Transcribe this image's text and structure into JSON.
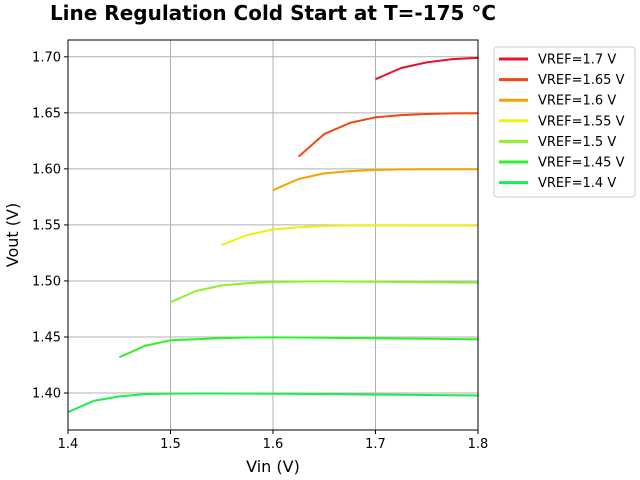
{
  "chart_data": {
    "type": "line",
    "title": "Line Regulation Cold Start at T=-175 °C",
    "xlabel": "Vin (V)",
    "ylabel": "Vout (V)",
    "xlim": [
      1.4,
      1.8
    ],
    "ylim": [
      1.367,
      1.715
    ],
    "xticks": [
      "1.4",
      "1.5",
      "1.6",
      "1.7",
      "1.8"
    ],
    "yticks": [
      "1.40",
      "1.45",
      "1.50",
      "1.55",
      "1.60",
      "1.65",
      "1.70"
    ],
    "grid": true,
    "legend_position": "outside-top-right",
    "series": [
      {
        "name": "VREF=1.7 V",
        "color": "#e8102a",
        "x": [
          1.7,
          1.725,
          1.75,
          1.775,
          1.8
        ],
        "y": [
          1.68,
          1.69,
          1.695,
          1.698,
          1.699
        ]
      },
      {
        "name": "VREF=1.65 V",
        "color": "#f04a10",
        "x": [
          1.625,
          1.65,
          1.675,
          1.7,
          1.725,
          1.75,
          1.775,
          1.8
        ],
        "y": [
          1.611,
          1.631,
          1.641,
          1.646,
          1.648,
          1.649,
          1.6495,
          1.6497
        ]
      },
      {
        "name": "VREF=1.6 V",
        "color": "#f5a300",
        "x": [
          1.6,
          1.625,
          1.65,
          1.675,
          1.7,
          1.725,
          1.75,
          1.775,
          1.8
        ],
        "y": [
          1.581,
          1.591,
          1.596,
          1.598,
          1.599,
          1.5995,
          1.5997,
          1.5997,
          1.5996
        ]
      },
      {
        "name": "VREF=1.55 V",
        "color": "#f0f010",
        "x": [
          1.55,
          1.575,
          1.6,
          1.625,
          1.65,
          1.675,
          1.7,
          1.725,
          1.75,
          1.775,
          1.8
        ],
        "y": [
          1.532,
          1.541,
          1.546,
          1.548,
          1.549,
          1.5495,
          1.5496,
          1.5496,
          1.5495,
          1.5495,
          1.5494
        ]
      },
      {
        "name": "VREF=1.5 V",
        "color": "#8cf02a",
        "x": [
          1.5,
          1.525,
          1.55,
          1.575,
          1.6,
          1.625,
          1.65,
          1.675,
          1.7,
          1.725,
          1.75,
          1.775,
          1.8
        ],
        "y": [
          1.481,
          1.491,
          1.496,
          1.498,
          1.499,
          1.4995,
          1.4996,
          1.4995,
          1.4993,
          1.499,
          1.4988,
          1.4986,
          1.4985
        ]
      },
      {
        "name": "VREF=1.45 V",
        "color": "#2ef02a",
        "x": [
          1.45,
          1.475,
          1.5,
          1.525,
          1.55,
          1.575,
          1.6,
          1.625,
          1.65,
          1.675,
          1.7,
          1.725,
          1.75,
          1.775,
          1.8
        ],
        "y": [
          1.432,
          1.442,
          1.447,
          1.448,
          1.449,
          1.4495,
          1.4496,
          1.4495,
          1.4493,
          1.449,
          1.4488,
          1.4486,
          1.4484,
          1.4482,
          1.448
        ]
      },
      {
        "name": "VREF=1.4 V",
        "color": "#1aee50",
        "x": [
          1.4,
          1.425,
          1.45,
          1.475,
          1.5,
          1.525,
          1.55,
          1.575,
          1.6,
          1.625,
          1.65,
          1.675,
          1.7,
          1.725,
          1.75,
          1.775,
          1.8
        ],
        "y": [
          1.383,
          1.393,
          1.397,
          1.399,
          1.3995,
          1.3996,
          1.3996,
          1.3995,
          1.3994,
          1.3992,
          1.399,
          1.3988,
          1.3986,
          1.3984,
          1.3982,
          1.398,
          1.3978
        ]
      }
    ]
  }
}
